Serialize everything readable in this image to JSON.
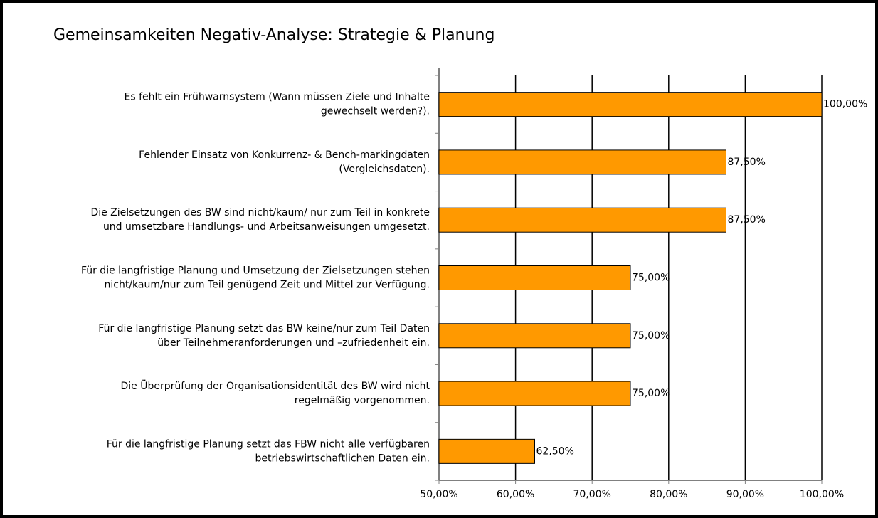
{
  "chart_data": {
    "type": "barh",
    "title": "Gemeinsamkeiten Negativ-Analyse: Strategie & Planung",
    "categories": [
      "Es fehlt ein Frühwarnsystem (Wann müssen Ziele und Inhalte\ngewechselt werden?).",
      "Fehlender Einsatz von Konkurrenz- & Bench-markingdaten\n(Vergleichsdaten).",
      "Die Zielsetzungen des BW sind nicht/kaum/  nur zum Teil in konkrete\nund umsetzbare Handlungs- und Arbeitsanweisungen umgesetzt.",
      "Für die langfristige Planung und Umsetzung der Zielsetzungen stehen\nnicht/kaum/nur zum Teil genügend Zeit und Mittel zur Verfügung.",
      "Für die langfristige Planung setzt das BW keine/nur zum Teil Daten\nüber Teilnehmeranforderungen und –zufriedenheit ein.",
      "Die Überprüfung der Organisationsidentität des BW wird nicht\nregelmäßig vorgenommen.",
      "Für die langfristige Planung setzt das FBW nicht alle verfügbaren\nbetriebswirtschaftlichen Daten ein."
    ],
    "values": [
      100,
      87.5,
      87.5,
      75,
      75,
      75,
      62.5
    ],
    "value_labels": [
      "100,00%",
      "87,50%",
      "87,50%",
      "75,00%",
      "75,00%",
      "75,00%",
      "62,50%"
    ],
    "color": "#ff9900",
    "xlim": [
      50,
      100
    ],
    "xticks": [
      {
        "value": 50,
        "label": "50,00%"
      },
      {
        "value": 60,
        "label": "60,00%"
      },
      {
        "value": 70,
        "label": "70,00%"
      },
      {
        "value": 80,
        "label": "80,00%"
      },
      {
        "value": 90,
        "label": "90,00%"
      },
      {
        "value": 100,
        "label": "100,00%"
      }
    ],
    "grid": true
  }
}
